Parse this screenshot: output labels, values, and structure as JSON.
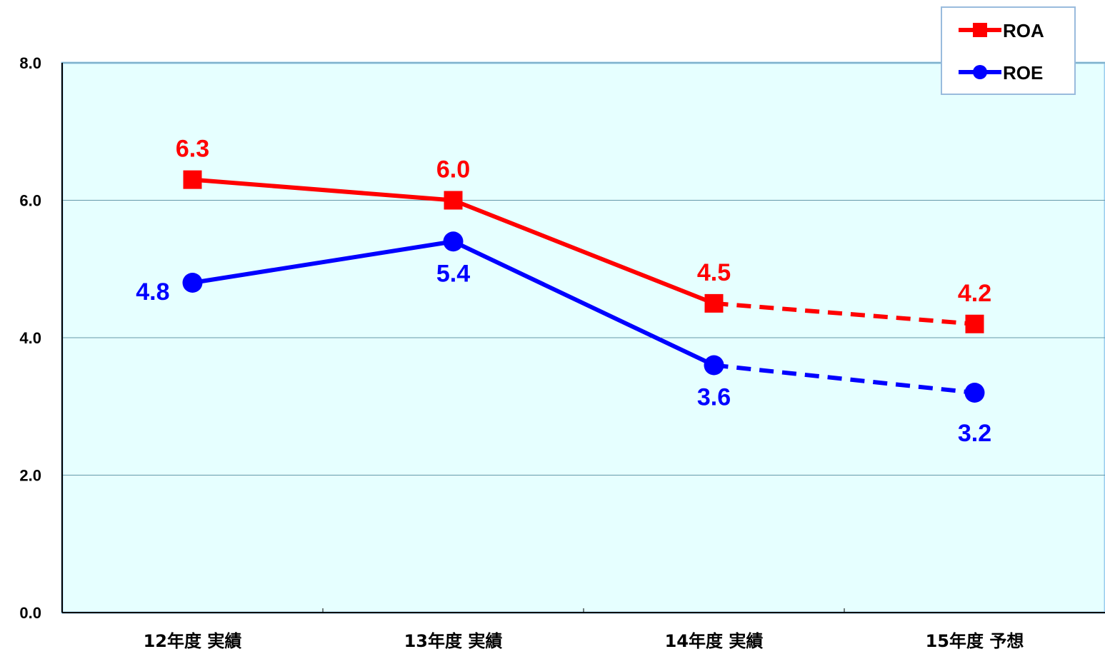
{
  "chart_data": {
    "type": "line",
    "categories": [
      "12年度 実績",
      "13年度 実績",
      "14年度 実績",
      "15年度 予想"
    ],
    "series": [
      {
        "name": "ROA",
        "values": [
          6.3,
          6.0,
          4.5,
          4.2
        ],
        "color": "#ff0000",
        "marker": "square",
        "forecast_from_index": 2
      },
      {
        "name": "ROE",
        "values": [
          4.8,
          5.4,
          3.6,
          3.2
        ],
        "color": "#0000ff",
        "marker": "circle",
        "forecast_from_index": 2
      }
    ],
    "y_ticks": [
      "0.0",
      "2.0",
      "4.0",
      "6.0",
      "8.0"
    ],
    "ylim": [
      0,
      8
    ],
    "grid": true,
    "plot_background": "#e6ffff",
    "grid_color": "#6699aa",
    "legend_position": "top-right",
    "title": "",
    "xlabel": "",
    "ylabel": ""
  }
}
